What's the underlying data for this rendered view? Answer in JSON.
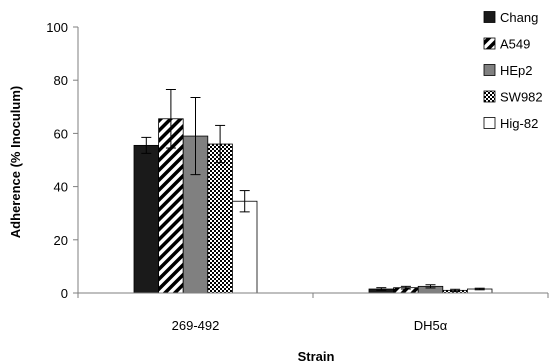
{
  "chart_data": {
    "type": "bar",
    "title": "",
    "xlabel": "Strain",
    "ylabel": "Adherence (% Inoculum)",
    "ylim": [
      0,
      100
    ],
    "yticks": [
      "0",
      "20",
      "40",
      "60",
      "80",
      "100"
    ],
    "categories": [
      "269-492",
      "DH5α"
    ],
    "legend_position": "right",
    "grid": false,
    "series": [
      {
        "name": "Chang",
        "values": [
          55.5,
          1.5
        ],
        "errors": [
          3,
          0.5
        ],
        "color": "#1a1a1a",
        "pattern": "solid-black"
      },
      {
        "name": "A549",
        "values": [
          65.5,
          2.0
        ],
        "errors": [
          11,
          0.5
        ],
        "color": "#000000",
        "pattern": "diagonal-stripes"
      },
      {
        "name": "HEp2",
        "values": [
          59.0,
          2.5
        ],
        "errors": [
          14.5,
          0.6
        ],
        "color": "#808080",
        "pattern": "solid-gray"
      },
      {
        "name": "SW982",
        "values": [
          56.0,
          1.0
        ],
        "errors": [
          7,
          0.4
        ],
        "color": "#000000",
        "pattern": "checker"
      },
      {
        "name": "Hig-82",
        "values": [
          34.5,
          1.5
        ],
        "errors": [
          4,
          0.3
        ],
        "color": "#ffffff",
        "pattern": "solid-white"
      }
    ]
  }
}
